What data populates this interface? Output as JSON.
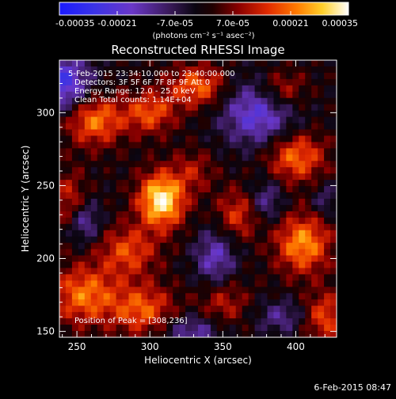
{
  "chart_data": {
    "type": "heatmap",
    "title": "Reconstructed RHESSI Image",
    "xlabel": "Heliocentric X (arcsec)",
    "ylabel": "Heliocentric Y (arcsec)",
    "xlim": [
      238,
      428
    ],
    "ylim": [
      146,
      336
    ],
    "x_ticks": [
      250,
      300,
      350,
      400
    ],
    "y_ticks": [
      150,
      200,
      250,
      300
    ],
    "colorbar": {
      "ticks": [
        "-0.00035",
        "-0.00021",
        "-7.0e-05",
        "7.0e-05",
        "0.00021",
        "0.00035"
      ],
      "tick_values": [
        -0.00035,
        -0.00021,
        -7e-05,
        7e-05,
        0.00021,
        0.00035
      ],
      "unit_label": "(photons cm⁻² s⁻¹ asec⁻²)",
      "range": [
        -0.00035,
        0.00035
      ],
      "colormap": "blue-purple-black-red-orange-yellow-white"
    },
    "annotations": [
      "5-Feb-2015 23:34:10.000 to 23:40:00.000",
      "Detectors: 3F 5F 6F 7F 8F 9F Att 0",
      "Energy Range: 12.0 - 25.0 keV",
      "Clean    Total counts: 1.14E+04"
    ],
    "peak_label": "Position of Peak = [308,236]",
    "peak_position": [
      308,
      236
    ],
    "sources": [
      {
        "x": 308,
        "y": 240,
        "amp": 0.00034,
        "sx": 11,
        "sy": 13
      },
      {
        "x": 262,
        "y": 295,
        "amp": 0.00022,
        "sx": 14,
        "sy": 12
      },
      {
        "x": 300,
        "y": 300,
        "amp": 0.00018,
        "sx": 12,
        "sy": 10
      },
      {
        "x": 333,
        "y": 318,
        "amp": 0.0002,
        "sx": 14,
        "sy": 10
      },
      {
        "x": 255,
        "y": 175,
        "amp": 0.00021,
        "sx": 16,
        "sy": 14
      },
      {
        "x": 295,
        "y": 165,
        "amp": 0.00019,
        "sx": 15,
        "sy": 12
      },
      {
        "x": 285,
        "y": 205,
        "amp": 0.00017,
        "sx": 14,
        "sy": 12
      },
      {
        "x": 405,
        "y": 210,
        "amp": 0.00024,
        "sx": 13,
        "sy": 14
      },
      {
        "x": 400,
        "y": 270,
        "amp": 0.00021,
        "sx": 14,
        "sy": 12
      },
      {
        "x": 360,
        "y": 230,
        "amp": 0.00015,
        "sx": 10,
        "sy": 12
      },
      {
        "x": 350,
        "y": 170,
        "amp": 0.00012,
        "sx": 12,
        "sy": 12
      },
      {
        "x": 390,
        "y": 315,
        "amp": 0.00016,
        "sx": 12,
        "sy": 10
      },
      {
        "x": 420,
        "y": 160,
        "amp": 0.00017,
        "sx": 10,
        "sy": 12
      },
      {
        "x": 245,
        "y": 240,
        "amp": 0.00013,
        "sx": 8,
        "sy": 14
      },
      {
        "x": 330,
        "y": 260,
        "amp": 0.0001,
        "sx": 10,
        "sy": 10
      },
      {
        "x": 375,
        "y": 300,
        "amp": -0.00022,
        "sx": 18,
        "sy": 16
      },
      {
        "x": 240,
        "y": 320,
        "amp": -0.00025,
        "sx": 14,
        "sy": 14
      },
      {
        "x": 255,
        "y": 225,
        "amp": -0.00015,
        "sx": 8,
        "sy": 10
      },
      {
        "x": 345,
        "y": 200,
        "amp": -0.00017,
        "sx": 10,
        "sy": 14
      },
      {
        "x": 330,
        "y": 150,
        "amp": -0.00015,
        "sx": 14,
        "sy": 8
      },
      {
        "x": 390,
        "y": 160,
        "amp": -0.00012,
        "sx": 12,
        "sy": 8
      },
      {
        "x": 380,
        "y": 240,
        "amp": -0.00013,
        "sx": 8,
        "sy": 10
      },
      {
        "x": 420,
        "y": 240,
        "amp": -0.0001,
        "sx": 6,
        "sy": 8
      }
    ]
  },
  "footer": {
    "date": "6-Feb-2015 08:47"
  }
}
